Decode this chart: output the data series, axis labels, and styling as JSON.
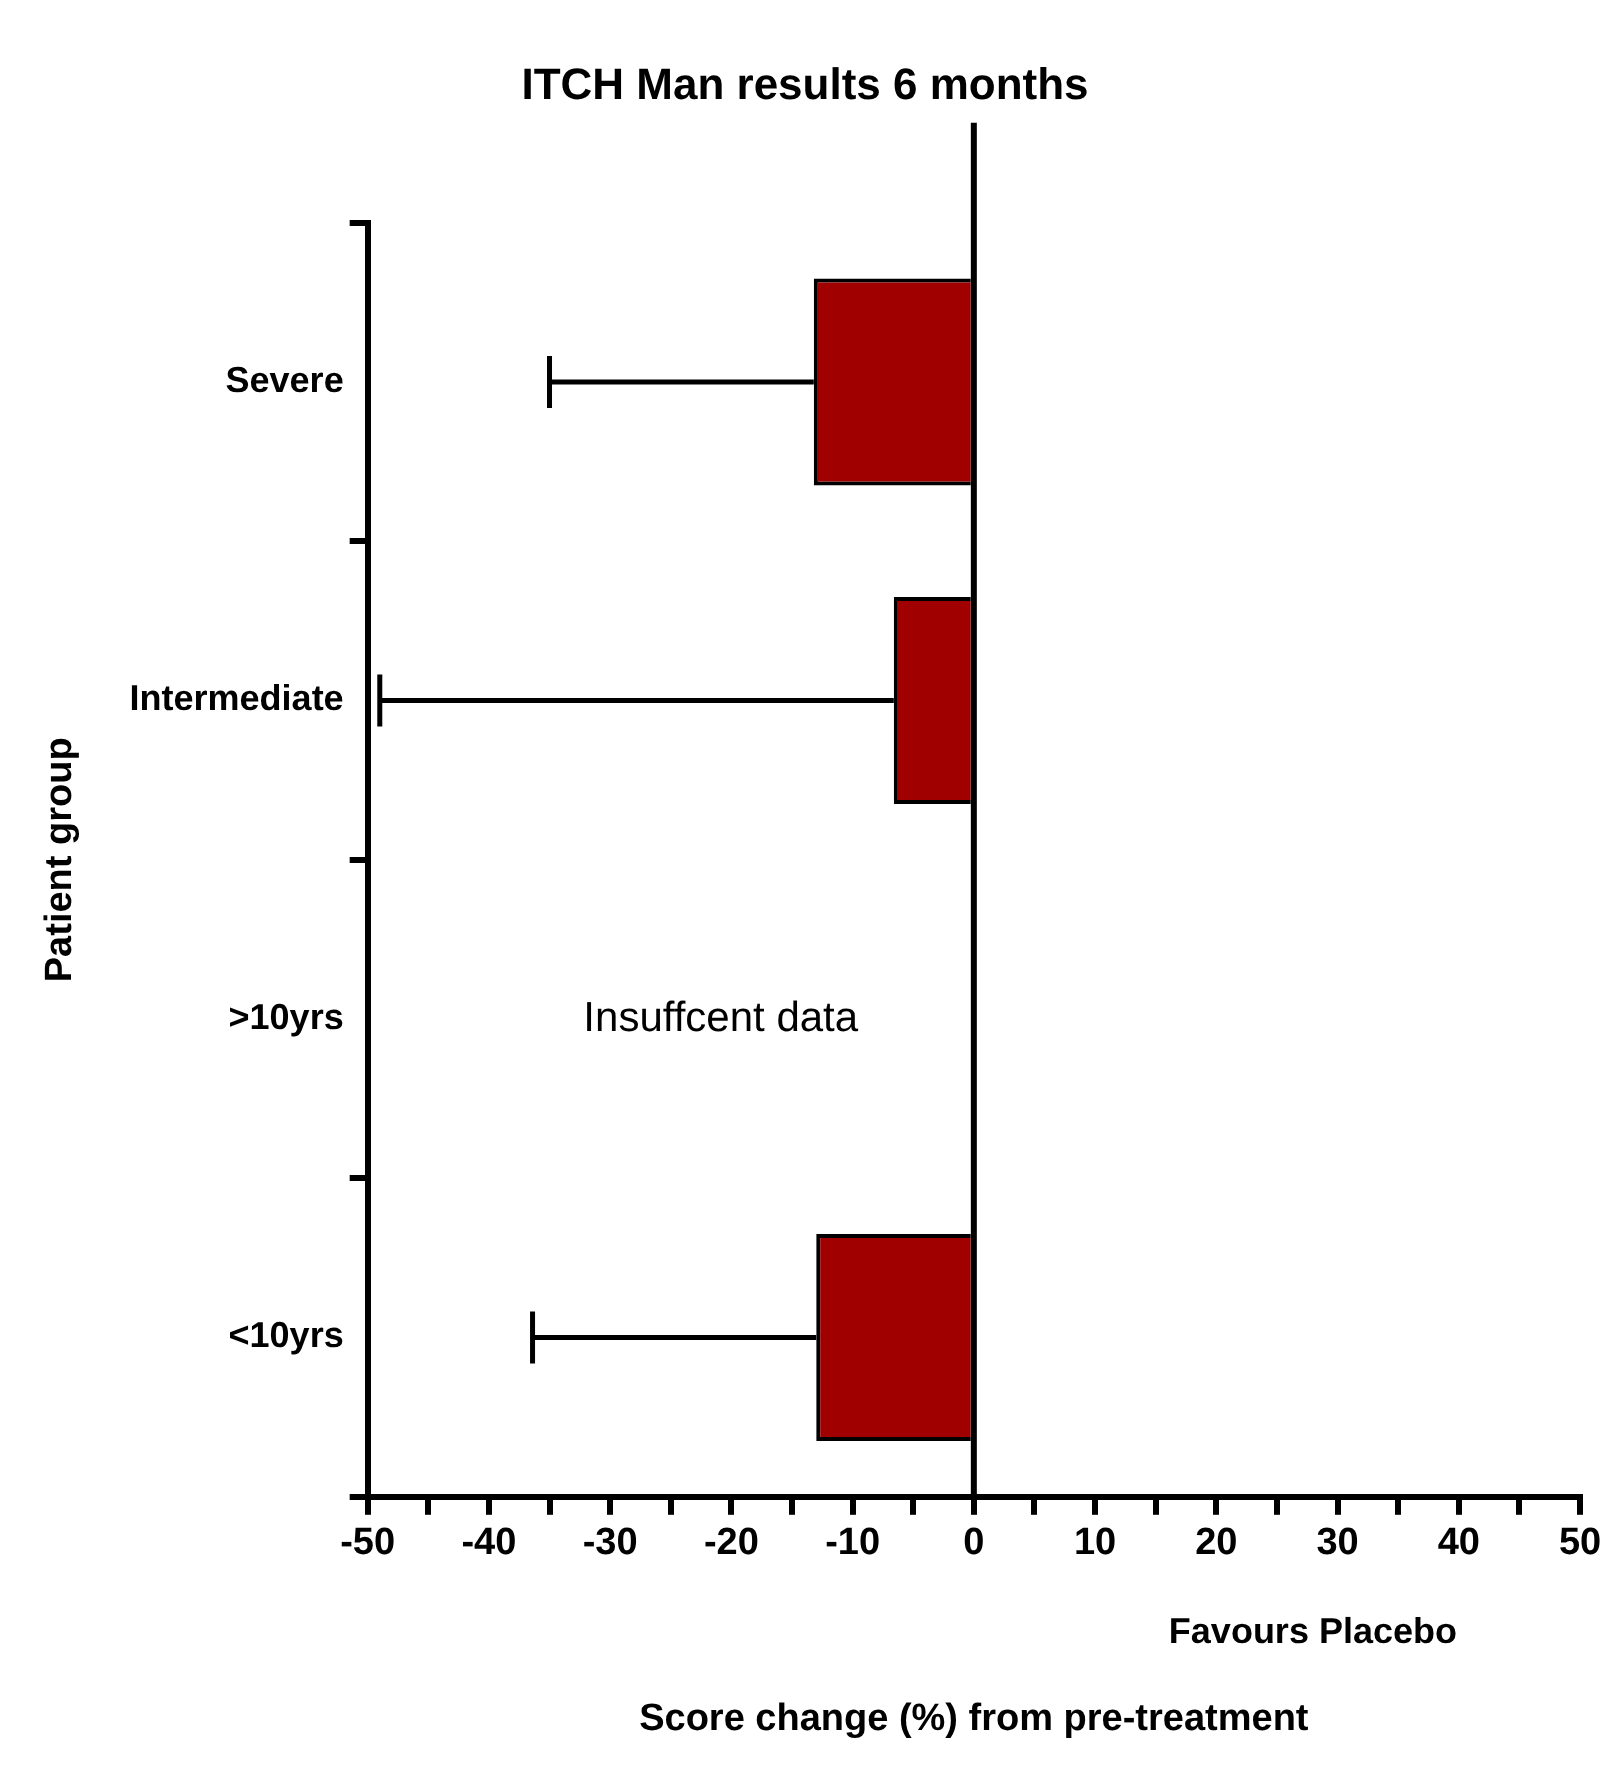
{
  "chart_data": {
    "type": "bar",
    "orientation": "horizontal",
    "title": "ITCH Man results 6 months",
    "xlabel": "Score change (%) from pre-treatment",
    "ylabel": "Patient group",
    "categories": [
      "Severe",
      "Intermediate",
      ">10yrs",
      "<10yrs"
    ],
    "values": [
      -13.2,
      -6.6,
      null,
      -13
    ],
    "errors": [
      [
        -35,
        -13.2
      ],
      [
        -49,
        -6.6
      ],
      null,
      [
        -36.4,
        -13
      ]
    ],
    "color": "#a00000",
    "xlim": [
      -50,
      50
    ],
    "xticks": [
      -50,
      {
        "value": -45,
        "label": null
      },
      -40,
      {
        "value": -35,
        "label": null
      },
      -30,
      {
        "value": -25,
        "label": null
      },
      -20,
      {
        "value": -15,
        "label": null
      },
      -10,
      {
        "value": -5,
        "label": null
      },
      0,
      {
        "value": 5,
        "label": null
      },
      10,
      {
        "value": 15,
        "label": null
      },
      20,
      {
        "value": 25,
        "label": null
      },
      30,
      {
        "value": 35,
        "label": null
      },
      40,
      {
        "value": 45,
        "label": null
      },
      50
    ],
    "ref_lines": [
      {
        "axis": "x",
        "value": 0,
        "color": "#000000"
      }
    ],
    "annotations": [
      "Insuffcent data",
      "Favours Placebo"
    ],
    "grid": false,
    "legend": false
  }
}
